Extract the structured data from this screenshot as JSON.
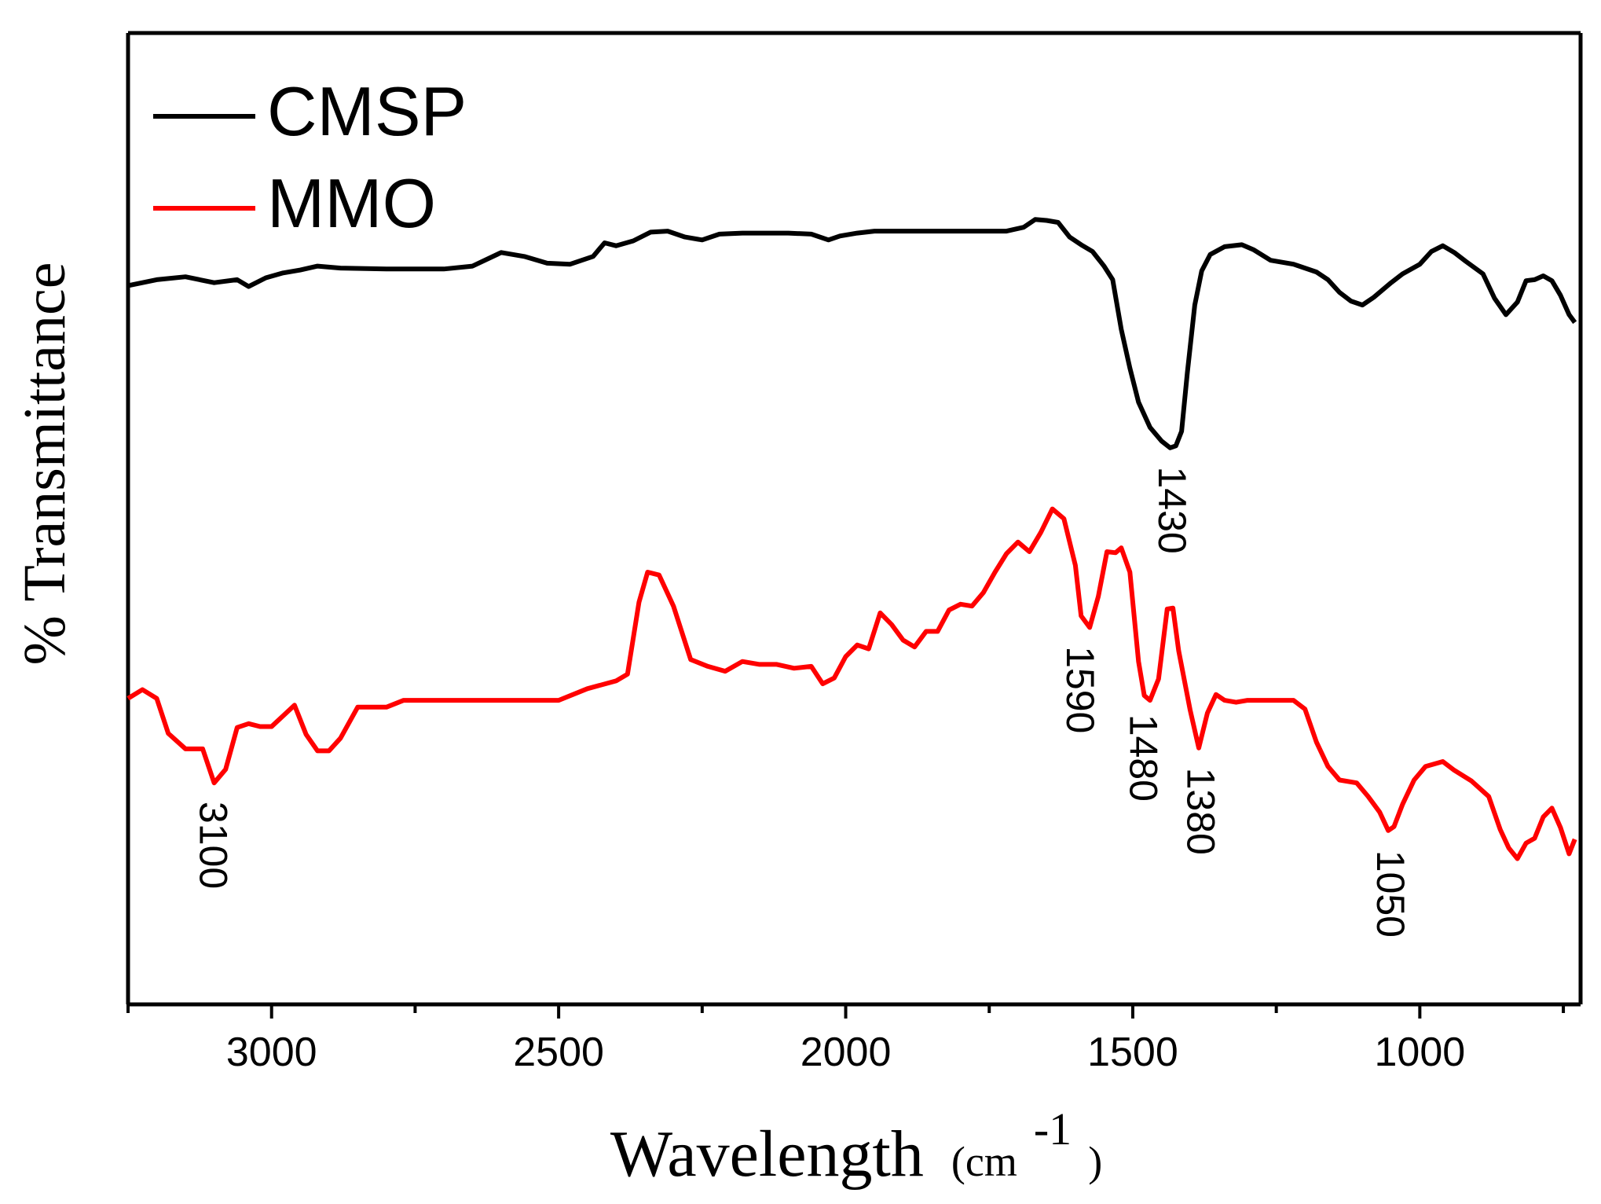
{
  "chart_data": {
    "type": "line",
    "title": "",
    "xlabel": "Wavelength",
    "xlabel_unit_prefix": "(cm",
    "xlabel_unit_exp": "-1",
    "xlabel_unit_suffix": ")",
    "ylabel": "% Transmittance",
    "xlim": [
      3250,
      720
    ],
    "ylim": [
      0,
      100
    ],
    "x_reversed": true,
    "y_ticks_shown": false,
    "grid": false,
    "legend_position": "top-left",
    "x_ticks": [
      {
        "value": 3000,
        "label": "3000"
      },
      {
        "value": 2500,
        "label": "2500"
      },
      {
        "value": 2000,
        "label": "2000"
      },
      {
        "value": 1500,
        "label": "1500"
      },
      {
        "value": 1000,
        "label": "1000"
      }
    ],
    "series": [
      {
        "name": "CMSP",
        "color": "#000000",
        "points": [
          [
            3250,
            74.0
          ],
          [
            3200,
            74.6
          ],
          [
            3150,
            74.9
          ],
          [
            3100,
            74.3
          ],
          [
            3060,
            74.6
          ],
          [
            3040,
            73.9
          ],
          [
            3010,
            74.8
          ],
          [
            2980,
            75.3
          ],
          [
            2950,
            75.6
          ],
          [
            2920,
            76.0
          ],
          [
            2880,
            75.8
          ],
          [
            2800,
            75.7
          ],
          [
            2700,
            75.7
          ],
          [
            2650,
            76.0
          ],
          [
            2600,
            77.4
          ],
          [
            2560,
            77.0
          ],
          [
            2520,
            76.3
          ],
          [
            2480,
            76.2
          ],
          [
            2440,
            77.0
          ],
          [
            2420,
            78.4
          ],
          [
            2400,
            78.1
          ],
          [
            2370,
            78.6
          ],
          [
            2340,
            79.5
          ],
          [
            2310,
            79.6
          ],
          [
            2280,
            79.0
          ],
          [
            2250,
            78.7
          ],
          [
            2220,
            79.3
          ],
          [
            2180,
            79.4
          ],
          [
            2130,
            79.4
          ],
          [
            2100,
            79.4
          ],
          [
            2060,
            79.3
          ],
          [
            2030,
            78.7
          ],
          [
            2010,
            79.1
          ],
          [
            1980,
            79.4
          ],
          [
            1950,
            79.6
          ],
          [
            1800,
            79.6
          ],
          [
            1720,
            79.6
          ],
          [
            1690,
            80.0
          ],
          [
            1670,
            80.8
          ],
          [
            1650,
            80.7
          ],
          [
            1630,
            80.5
          ],
          [
            1610,
            79.0
          ],
          [
            1590,
            78.2
          ],
          [
            1570,
            77.5
          ],
          [
            1550,
            76.0
          ],
          [
            1535,
            74.6
          ],
          [
            1520,
            69.5
          ],
          [
            1505,
            65.5
          ],
          [
            1490,
            62.0
          ],
          [
            1470,
            59.4
          ],
          [
            1450,
            58.0
          ],
          [
            1435,
            57.3
          ],
          [
            1425,
            57.5
          ],
          [
            1415,
            59.0
          ],
          [
            1405,
            65.0
          ],
          [
            1392,
            72.0
          ],
          [
            1380,
            75.5
          ],
          [
            1365,
            77.2
          ],
          [
            1340,
            78.0
          ],
          [
            1310,
            78.2
          ],
          [
            1290,
            77.7
          ],
          [
            1260,
            76.6
          ],
          [
            1220,
            76.2
          ],
          [
            1180,
            75.4
          ],
          [
            1160,
            74.6
          ],
          [
            1140,
            73.3
          ],
          [
            1120,
            72.4
          ],
          [
            1100,
            72.0
          ],
          [
            1080,
            72.8
          ],
          [
            1050,
            74.3
          ],
          [
            1030,
            75.2
          ],
          [
            1000,
            76.2
          ],
          [
            980,
            77.5
          ],
          [
            960,
            78.1
          ],
          [
            940,
            77.4
          ],
          [
            920,
            76.5
          ],
          [
            890,
            75.2
          ],
          [
            870,
            72.7
          ],
          [
            850,
            71.0
          ],
          [
            830,
            72.3
          ],
          [
            815,
            74.5
          ],
          [
            800,
            74.6
          ],
          [
            785,
            75.0
          ],
          [
            770,
            74.5
          ],
          [
            755,
            73.0
          ],
          [
            740,
            71.0
          ],
          [
            730,
            70.2
          ]
        ]
      },
      {
        "name": "MMO",
        "color": "#ff0000",
        "points": [
          [
            3250,
            31.5
          ],
          [
            3225,
            32.4
          ],
          [
            3200,
            31.5
          ],
          [
            3180,
            27.9
          ],
          [
            3150,
            26.3
          ],
          [
            3120,
            26.3
          ],
          [
            3100,
            22.8
          ],
          [
            3080,
            24.2
          ],
          [
            3060,
            28.5
          ],
          [
            3040,
            28.9
          ],
          [
            3020,
            28.6
          ],
          [
            3000,
            28.6
          ],
          [
            2980,
            29.7
          ],
          [
            2960,
            30.8
          ],
          [
            2940,
            27.8
          ],
          [
            2920,
            26.1
          ],
          [
            2900,
            26.1
          ],
          [
            2880,
            27.4
          ],
          [
            2850,
            30.6
          ],
          [
            2830,
            30.6
          ],
          [
            2800,
            30.6
          ],
          [
            2770,
            31.3
          ],
          [
            2700,
            31.3
          ],
          [
            2600,
            31.3
          ],
          [
            2500,
            31.3
          ],
          [
            2450,
            32.5
          ],
          [
            2400,
            33.3
          ],
          [
            2380,
            34.0
          ],
          [
            2360,
            41.4
          ],
          [
            2345,
            44.5
          ],
          [
            2325,
            44.2
          ],
          [
            2300,
            41.0
          ],
          [
            2270,
            35.5
          ],
          [
            2240,
            34.8
          ],
          [
            2210,
            34.3
          ],
          [
            2180,
            35.3
          ],
          [
            2150,
            35.0
          ],
          [
            2120,
            35.0
          ],
          [
            2090,
            34.6
          ],
          [
            2060,
            34.8
          ],
          [
            2040,
            33.0
          ],
          [
            2020,
            33.6
          ],
          [
            2000,
            35.8
          ],
          [
            1980,
            37.0
          ],
          [
            1960,
            36.6
          ],
          [
            1940,
            40.3
          ],
          [
            1920,
            39.1
          ],
          [
            1900,
            37.5
          ],
          [
            1880,
            36.8
          ],
          [
            1860,
            38.4
          ],
          [
            1840,
            38.4
          ],
          [
            1820,
            40.6
          ],
          [
            1800,
            41.2
          ],
          [
            1780,
            41.0
          ],
          [
            1760,
            42.4
          ],
          [
            1740,
            44.5
          ],
          [
            1720,
            46.4
          ],
          [
            1700,
            47.6
          ],
          [
            1680,
            46.6
          ],
          [
            1660,
            48.6
          ],
          [
            1640,
            51.0
          ],
          [
            1620,
            50.0
          ],
          [
            1600,
            45.2
          ],
          [
            1590,
            40.0
          ],
          [
            1575,
            38.8
          ],
          [
            1560,
            42.0
          ],
          [
            1545,
            46.6
          ],
          [
            1530,
            46.5
          ],
          [
            1520,
            47.0
          ],
          [
            1505,
            44.5
          ],
          [
            1490,
            35.3
          ],
          [
            1480,
            31.8
          ],
          [
            1470,
            31.3
          ],
          [
            1455,
            33.5
          ],
          [
            1440,
            40.7
          ],
          [
            1430,
            40.8
          ],
          [
            1420,
            36.4
          ],
          [
            1400,
            30.3
          ],
          [
            1385,
            26.4
          ],
          [
            1370,
            30.0
          ],
          [
            1355,
            31.9
          ],
          [
            1340,
            31.3
          ],
          [
            1320,
            31.1
          ],
          [
            1300,
            31.3
          ],
          [
            1260,
            31.3
          ],
          [
            1220,
            31.3
          ],
          [
            1200,
            30.4
          ],
          [
            1180,
            27.0
          ],
          [
            1160,
            24.5
          ],
          [
            1140,
            23.1
          ],
          [
            1110,
            22.8
          ],
          [
            1090,
            21.4
          ],
          [
            1070,
            19.8
          ],
          [
            1055,
            17.9
          ],
          [
            1045,
            18.3
          ],
          [
            1030,
            20.6
          ],
          [
            1010,
            23.1
          ],
          [
            990,
            24.5
          ],
          [
            960,
            25.0
          ],
          [
            940,
            24.1
          ],
          [
            910,
            23.0
          ],
          [
            880,
            21.4
          ],
          [
            860,
            18.0
          ],
          [
            845,
            16.1
          ],
          [
            830,
            15.0
          ],
          [
            815,
            16.6
          ],
          [
            800,
            17.1
          ],
          [
            785,
            19.3
          ],
          [
            770,
            20.2
          ],
          [
            755,
            18.2
          ],
          [
            740,
            15.5
          ],
          [
            730,
            17.0
          ]
        ]
      }
    ],
    "annotations": [
      {
        "text": "1430",
        "x": 1430,
        "y": 57.0,
        "series": "CMSP"
      },
      {
        "text": "3100",
        "x": 3100,
        "y": 22.5,
        "series": "MMO"
      },
      {
        "text": "1590",
        "x": 1590,
        "y": 38.5,
        "series": "MMO"
      },
      {
        "text": "1480",
        "x": 1480,
        "y": 31.5,
        "series": "MMO"
      },
      {
        "text": "1380",
        "x": 1380,
        "y": 26.0,
        "series": "MMO"
      },
      {
        "text": "1050",
        "x": 1050,
        "y": 17.5,
        "series": "MMO"
      }
    ]
  }
}
